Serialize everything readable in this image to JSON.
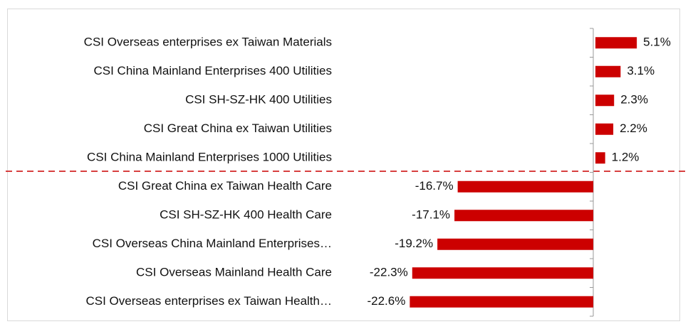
{
  "chart_data": {
    "type": "bar",
    "orientation": "horizontal",
    "categories": [
      "CSI Overseas enterprises ex Taiwan Materials",
      "CSI China Mainland Enterprises 400 Utilities",
      "CSI SH-SZ-HK 400 Utilities",
      "CSI Great China ex Taiwan Utilities",
      "CSI China Mainland Enterprises 1000 Utilities",
      "CSI Great China ex Taiwan Health Care",
      "CSI SH-SZ-HK 400 Health Care",
      "CSI Overseas China Mainland Enterprises…",
      "CSI Overseas Mainland Health Care",
      "CSI Overseas enterprises ex Taiwan Health…"
    ],
    "values": [
      5.1,
      3.1,
      2.3,
      2.2,
      1.2,
      -16.7,
      -17.1,
      -19.2,
      -22.3,
      -22.6
    ],
    "value_labels": [
      "5.1%",
      "3.1%",
      "2.3%",
      "2.2%",
      "1.2%",
      "-16.7%",
      "-17.1%",
      "-19.2%",
      "-22.3%",
      "-22.6%"
    ],
    "color": "#cc0000"
  }
}
